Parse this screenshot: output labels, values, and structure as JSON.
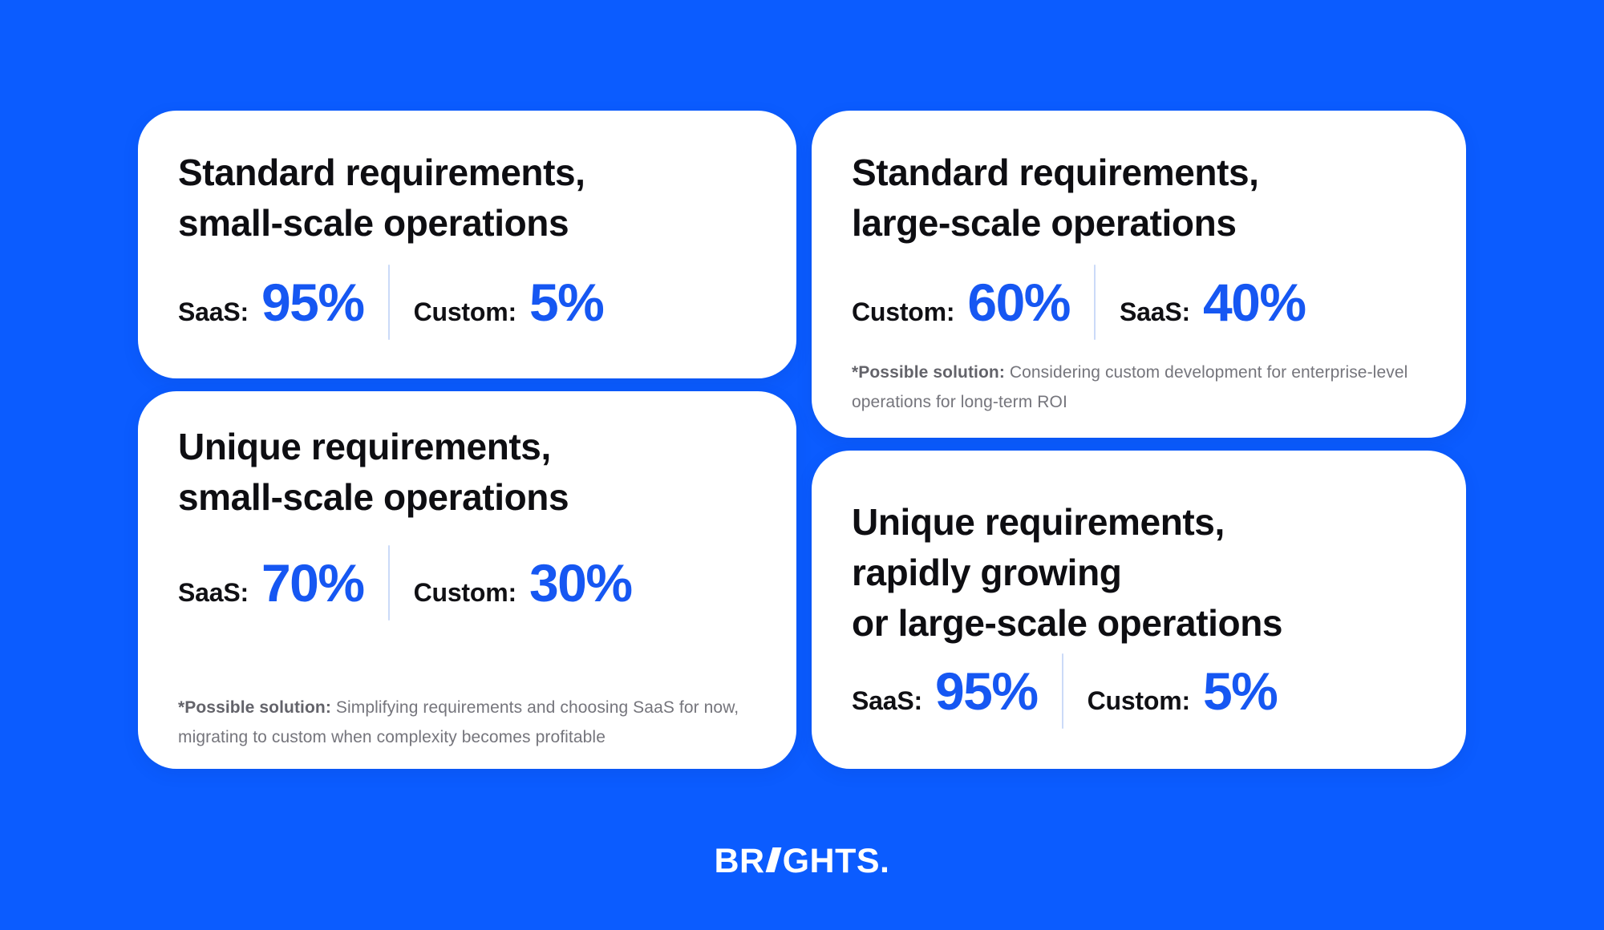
{
  "colors": {
    "background": "#0B5CFF",
    "card_background": "#FFFFFF",
    "title_text": "#0E0E12",
    "stat_value_accent": "#1657F2",
    "stat_divider": "#CBDAF8",
    "footnote_text": "#75757C",
    "logo_text": "#FFFFFF"
  },
  "cards": {
    "standard_small": {
      "title_line1": "Standard requirements,",
      "title_line2": "small-scale operations",
      "stat1_label": "SaaS:",
      "stat1_value": "95%",
      "stat2_label": "Custom:",
      "stat2_value": "5%"
    },
    "unique_small": {
      "title_line1": "Unique requirements,",
      "title_line2": "small-scale operations",
      "stat1_label": "SaaS:",
      "stat1_value": "70%",
      "stat2_label": "Custom:",
      "stat2_value": "30%",
      "footnote_label": "*Possible solution:",
      "footnote_text": "Simplifying requirements and choosing SaaS for now, migrating to custom when complexity becomes profitable"
    },
    "standard_large": {
      "title_line1": "Standard requirements,",
      "title_line2": "large-scale operations",
      "stat1_label": "Custom:",
      "stat1_value": "60%",
      "stat2_label": "SaaS:",
      "stat2_value": "40%",
      "footnote_label": "*Possible solution:",
      "footnote_text": "Considering custom development for enterprise-level operations for long-term ROI"
    },
    "unique_large": {
      "title_line1": "Unique requirements,",
      "title_line2": "rapidly growing",
      "title_line3": "or large-scale operations",
      "stat1_label": "SaaS:",
      "stat1_value": "95%",
      "stat2_label": "Custom:",
      "stat2_value": "5%"
    }
  },
  "logo": {
    "text": "BRIGHTS.",
    "pre": "BR",
    "post": "GHTS."
  },
  "chart_data": {
    "type": "table",
    "title": "SaaS vs Custom development split by scenario",
    "categories": [
      "Standard requirements, small-scale operations",
      "Unique requirements, small-scale operations",
      "Standard requirements, large-scale operations",
      "Unique requirements, rapidly growing or large-scale operations"
    ],
    "series": [
      {
        "name": "SaaS",
        "values": [
          95,
          70,
          40,
          95
        ]
      },
      {
        "name": "Custom",
        "values": [
          5,
          30,
          60,
          5
        ]
      }
    ],
    "annotations": [
      "*Possible solution: Simplifying requirements and choosing SaaS for now, migrating to custom when complexity becomes profitable",
      "*Possible solution: Considering custom development for enterprise-level operations for long-term ROI"
    ]
  }
}
